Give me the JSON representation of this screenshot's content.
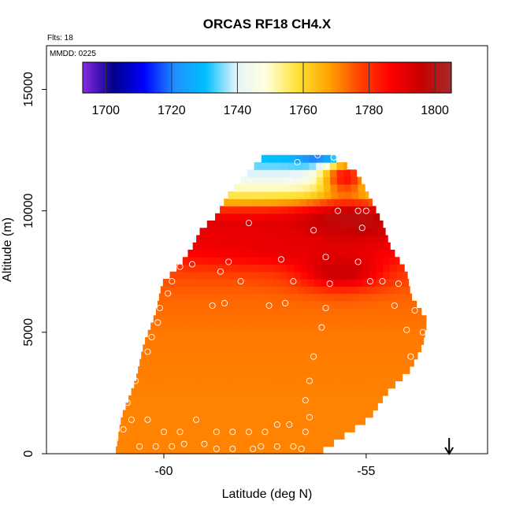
{
  "chart_data": {
    "type": "heatmap",
    "title": "ORCAS RF18 CH4.X",
    "subtitle_flights": "Flts: 18",
    "subtitle_date": "MMDD: 0225",
    "xlabel": "Latitude (deg N)",
    "ylabel": "Altitude (m)",
    "xlim": [
      -62.9,
      -52.0
    ],
    "ylim": [
      0,
      16800
    ],
    "xticks": [
      -60,
      -55
    ],
    "xtick_labels": [
      "-60",
      "-55"
    ],
    "yticks": [
      0,
      5000,
      10000,
      15000
    ],
    "ytick_labels": [
      "0",
      "5000",
      "10000",
      "15000"
    ],
    "colorbar": {
      "min": 1693,
      "max": 1805,
      "ticks": [
        1700,
        1720,
        1740,
        1760,
        1780,
        1800
      ],
      "tick_labels": [
        "1700",
        "1720",
        "1740",
        "1760",
        "1780",
        "1800"
      ],
      "colors": [
        "#8a2be2",
        "#00008b",
        "#0000ff",
        "#1e90ff",
        "#00bfff",
        "#e6f5fb",
        "#ffffd9",
        "#ffe135",
        "#ffa500",
        "#ff4500",
        "#ff0000",
        "#c80000",
        "#a52a2a"
      ]
    },
    "domain_left": [
      [
        0,
        -61.2
      ],
      [
        1500,
        -61.05
      ],
      [
        3000,
        -60.7
      ],
      [
        4500,
        -60.5
      ],
      [
        5800,
        -60.2
      ],
      [
        7000,
        -60.05
      ],
      [
        7800,
        -59.6
      ],
      [
        8500,
        -59.3
      ],
      [
        9200,
        -59.1
      ],
      [
        9800,
        -58.7
      ],
      [
        10700,
        -58.4
      ],
      [
        11800,
        -57.8
      ],
      [
        12300,
        -57.5
      ]
    ],
    "domain_right": [
      [
        0,
        -56.2
      ],
      [
        800,
        -55.5
      ],
      [
        1500,
        -54.9
      ],
      [
        2500,
        -54.5
      ],
      [
        3500,
        -53.9
      ],
      [
        4500,
        -53.6
      ],
      [
        5500,
        -53.5
      ],
      [
        6500,
        -53.9
      ],
      [
        7500,
        -54.0
      ],
      [
        8500,
        -54.4
      ],
      [
        9500,
        -54.6
      ],
      [
        10500,
        -54.9
      ],
      [
        11500,
        -55.2
      ],
      [
        12000,
        -55.6
      ],
      [
        12300,
        -55.9
      ]
    ],
    "fields": {
      "background": 1771,
      "profile": [
        [
          0,
          1771
        ],
        [
          2000,
          1771
        ],
        [
          5000,
          1772
        ],
        [
          6500,
          1774
        ],
        [
          7500,
          1777
        ],
        [
          8500,
          1787
        ],
        [
          9500,
          1792
        ],
        [
          10000,
          1782
        ],
        [
          10500,
          1760
        ],
        [
          11200,
          1745
        ],
        [
          12000,
          1732
        ],
        [
          12500,
          1727
        ]
      ],
      "blobs": [
        {
          "lat": -55.4,
          "alt": 9600,
          "value": 1800,
          "r_lat": 1.1,
          "r_alt": 700
        },
        {
          "lat": -55.6,
          "alt": 7500,
          "value": 1795,
          "r_lat": 1.0,
          "r_alt": 700
        },
        {
          "lat": -57.0,
          "alt": 8700,
          "value": 1790,
          "r_lat": 2.5,
          "r_alt": 900
        },
        {
          "lat": -56.0,
          "alt": 12200,
          "value": 1712,
          "r_lat": 0.6,
          "r_alt": 300
        },
        {
          "lat": -55.5,
          "alt": 11400,
          "value": 1785,
          "r_lat": 0.6,
          "r_alt": 800
        }
      ]
    },
    "samples": [
      [
        -61.3,
        300
      ],
      [
        -61.2,
        600
      ],
      [
        -61.0,
        1000
      ],
      [
        -60.8,
        1400
      ],
      [
        -61.1,
        1600
      ],
      [
        -60.9,
        2100
      ],
      [
        -60.7,
        3000
      ],
      [
        -60.4,
        4200
      ],
      [
        -60.3,
        4800
      ],
      [
        -60.15,
        5400
      ],
      [
        -60.1,
        6000
      ],
      [
        -59.9,
        6600
      ],
      [
        -59.8,
        7100
      ],
      [
        -59.6,
        7700
      ],
      [
        -59.3,
        7800
      ],
      [
        -60.6,
        300
      ],
      [
        -60.2,
        300
      ],
      [
        -59.8,
        300
      ],
      [
        -59.5,
        400
      ],
      [
        -59.0,
        400
      ],
      [
        -58.7,
        200
      ],
      [
        -58.3,
        200
      ],
      [
        -57.8,
        200
      ],
      [
        -57.6,
        300
      ],
      [
        -57.2,
        300
      ],
      [
        -56.8,
        300
      ],
      [
        -56.6,
        200
      ],
      [
        -60.4,
        1400
      ],
      [
        -60.0,
        900
      ],
      [
        -59.6,
        900
      ],
      [
        -59.2,
        1400
      ],
      [
        -58.7,
        900
      ],
      [
        -58.3,
        900
      ],
      [
        -57.9,
        900
      ],
      [
        -57.5,
        900
      ],
      [
        -57.2,
        1200
      ],
      [
        -56.9,
        1200
      ],
      [
        -56.5,
        900
      ],
      [
        -56.4,
        1500
      ],
      [
        -56.5,
        2200
      ],
      [
        -56.4,
        3000
      ],
      [
        -56.3,
        4000
      ],
      [
        -56.1,
        5200
      ],
      [
        -56.0,
        6000
      ],
      [
        -55.9,
        7000
      ],
      [
        -56.0,
        8100
      ],
      [
        -56.3,
        9200
      ],
      [
        -55.7,
        10000
      ],
      [
        -55.2,
        10000
      ],
      [
        -55.0,
        10000
      ],
      [
        -55.1,
        9300
      ],
      [
        -55.2,
        7900
      ],
      [
        -54.9,
        7100
      ],
      [
        -54.6,
        7100
      ],
      [
        -54.2,
        7000
      ],
      [
        -54.3,
        6100
      ],
      [
        -53.8,
        5900
      ],
      [
        -53.6,
        5000
      ],
      [
        -54.0,
        5100
      ],
      [
        -53.9,
        4000
      ],
      [
        -53.3,
        4400
      ],
      [
        -53.2,
        4800
      ],
      [
        -58.8,
        6100
      ],
      [
        -58.5,
        6200
      ],
      [
        -58.1,
        7100
      ],
      [
        -57.4,
        6100
      ],
      [
        -57.0,
        6200
      ],
      [
        -56.8,
        7100
      ],
      [
        -57.1,
        8000
      ],
      [
        -57.9,
        9500
      ],
      [
        -58.4,
        7900
      ],
      [
        -58.6,
        7500
      ],
      [
        -56.9,
        11200
      ],
      [
        -56.7,
        12000
      ],
      [
        -56.2,
        12300
      ],
      [
        -55.8,
        12200
      ],
      [
        -55.5,
        12200
      ],
      [
        -55.2,
        11800
      ],
      [
        -55.0,
        11400
      ],
      [
        -54.8,
        11100
      ]
    ],
    "arrow": {
      "lat": -52.95
    }
  }
}
